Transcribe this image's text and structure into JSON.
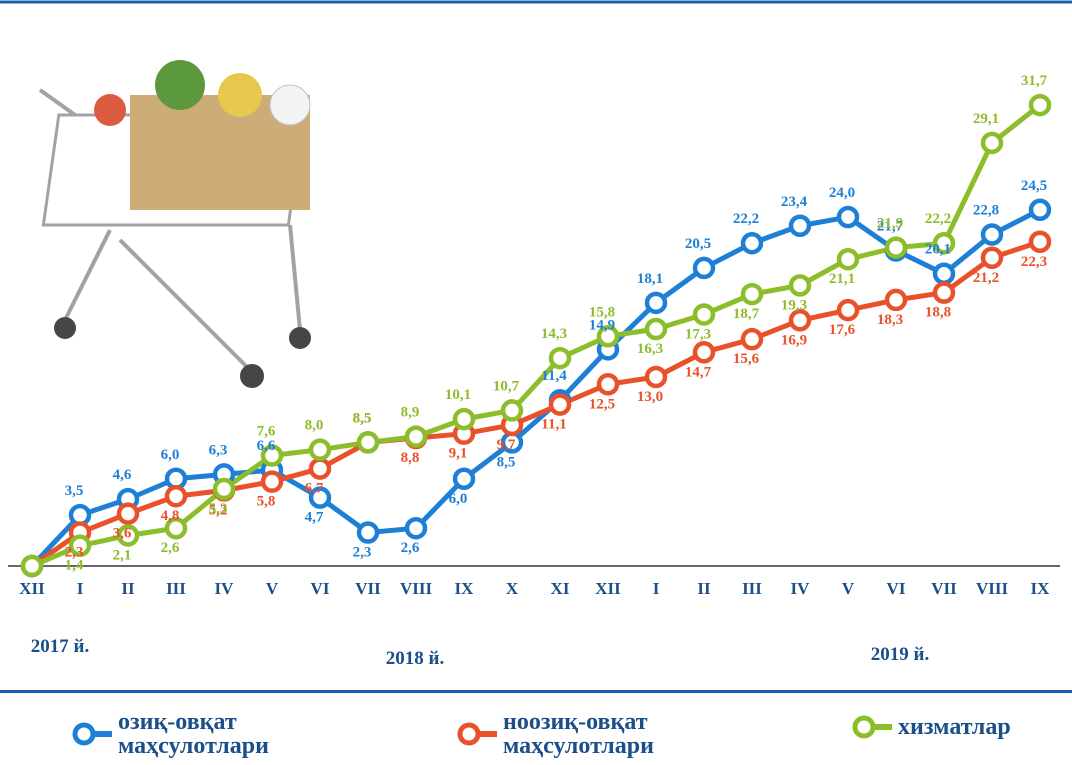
{
  "chart_data": {
    "type": "line",
    "categories": [
      "XII",
      "I",
      "II",
      "III",
      "IV",
      "V",
      "VI",
      "VII",
      "VIII",
      "IX",
      "X",
      "XI",
      "XII",
      "I",
      "II",
      "III",
      "IV",
      "V",
      "VI",
      "VII",
      "VIII",
      "IX"
    ],
    "periods": [
      "2017 й.",
      "2018 й.",
      "2019 й."
    ],
    "ylim": [
      0,
      35
    ],
    "series": [
      {
        "name": "озиқ-овқат маҳсулотлари",
        "color": "#1e7fd6",
        "values": [
          0,
          3.5,
          4.6,
          6.0,
          6.3,
          6.6,
          4.7,
          2.3,
          2.6,
          6.0,
          8.5,
          11.4,
          14.9,
          18.1,
          20.5,
          22.2,
          23.4,
          24.0,
          21.7,
          20.1,
          22.8,
          24.5
        ],
        "value_labels": [
          null,
          "3,5",
          "4,6",
          "6,0",
          "6,3",
          "6,6",
          "4,7",
          "2,3",
          "2,6",
          "6,0",
          "8,5",
          "11,4",
          "14,9",
          "18,1",
          "20,5",
          "22,2",
          "23,4",
          "24,0",
          "21,7",
          "20,1",
          "22,8",
          "24,5"
        ]
      },
      {
        "name": "ноозиқ-овқат маҳсулотлари",
        "color": "#e8512a",
        "values": [
          0,
          2.3,
          3.6,
          4.8,
          5.2,
          5.8,
          6.7,
          8.5,
          8.8,
          9.1,
          9.7,
          11.1,
          12.5,
          13.0,
          14.7,
          15.6,
          16.9,
          17.6,
          18.3,
          18.8,
          21.2,
          22.3
        ],
        "value_labels": [
          null,
          "2,3",
          "3,6",
          "4,8",
          "5,2",
          "5,8",
          "6,7",
          "8,5",
          "8,8",
          "9,1",
          "9,7",
          "11,1",
          "12,5",
          "13,0",
          "14,7",
          "15,6",
          "16,9",
          "17,6",
          "18,3",
          "18,8",
          "21,2",
          "22,3"
        ]
      },
      {
        "name": "хизматлар",
        "color": "#8cbd2a",
        "values": [
          0,
          1.4,
          2.1,
          2.6,
          5.3,
          7.6,
          8.0,
          8.5,
          8.9,
          10.1,
          10.7,
          14.3,
          15.8,
          16.3,
          17.3,
          18.7,
          19.3,
          21.1,
          21.9,
          22.2,
          29.1,
          31.7
        ],
        "value_labels": [
          null,
          "1,4",
          "2,1",
          "2,6",
          "5,3",
          "7,6",
          "8,0",
          "8,5",
          "8,9",
          "10,1",
          "10,7",
          "14,3",
          "15,8",
          "16,3",
          "17,3",
          "18,7",
          "19,3",
          "21,1",
          "21,9",
          "22,2",
          "29,1",
          "31,7"
        ]
      }
    ]
  }
}
